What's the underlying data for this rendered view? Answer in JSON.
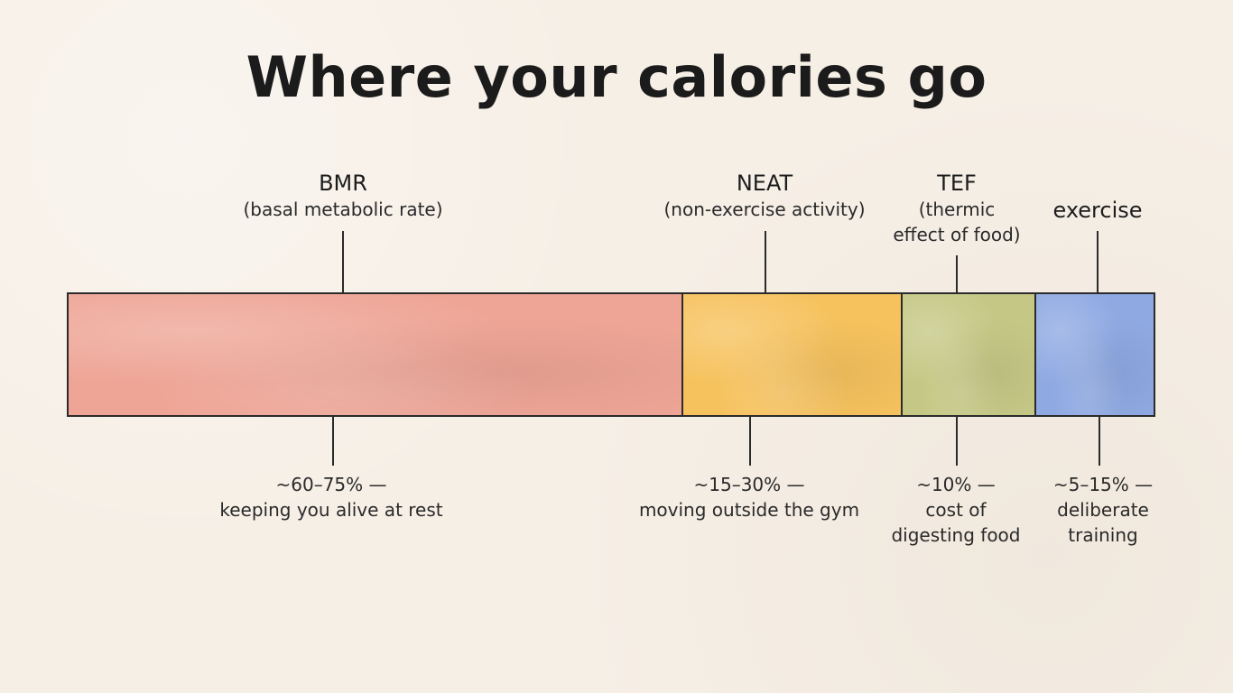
{
  "title": "Where your calories go",
  "segments": [
    {
      "name": "BMR",
      "subtitle": "(basal metabolic rate)",
      "range": "~60–75% —",
      "description_lines": [
        "keeping you alive at rest"
      ],
      "color": "#eea596"
    },
    {
      "name": "NEAT",
      "subtitle": "(non-exercise activity)",
      "range": "~15–30% —",
      "description_lines": [
        "moving outside the gym"
      ],
      "color": "#f6c25e"
    },
    {
      "name": "TEF",
      "subtitle_lines": [
        "(thermic",
        "effect of food)"
      ],
      "range": "~10% —",
      "description_lines": [
        "cost of",
        "digesting food"
      ],
      "color": "#c5c885"
    },
    {
      "name": "exercise",
      "range": "~5–15% —",
      "description_lines": [
        "deliberate",
        "training"
      ],
      "color": "#8fa9e2"
    }
  ]
}
